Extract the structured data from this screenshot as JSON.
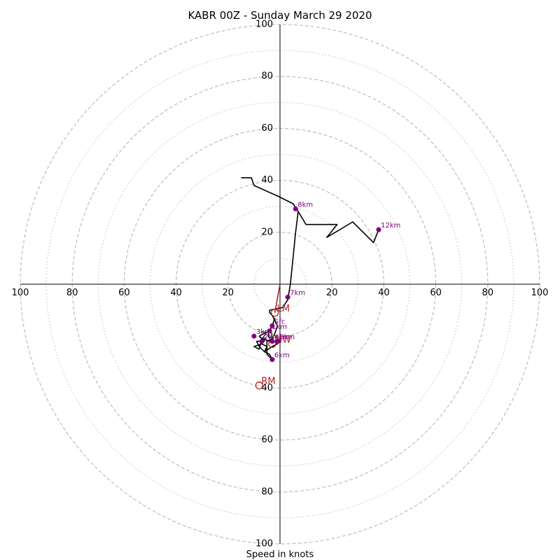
{
  "chart_data": {
    "type": "hodograph",
    "title": "KABR 00Z - Sunday March 29 2020",
    "xlabel": "Speed in knots",
    "range": 100,
    "ring_major": [
      20,
      40,
      60,
      80,
      100
    ],
    "ring_minor": [
      10,
      30,
      50,
      70,
      90
    ],
    "tick_labels": [
      "20",
      "40",
      "60",
      "80",
      "100"
    ],
    "colors": {
      "trace": "#000000",
      "heights": "#800080",
      "motion": "#b22222",
      "grid": "#bdbdbd"
    },
    "trace": [
      [
        -2,
        -13
      ],
      [
        -3,
        -16
      ],
      [
        -4,
        -18
      ],
      [
        -6,
        -19
      ],
      [
        -8,
        -20
      ],
      [
        -6,
        -22
      ],
      [
        -9,
        -22
      ],
      [
        -8,
        -24
      ],
      [
        -6,
        -26
      ],
      [
        -5,
        -24
      ],
      [
        -5,
        -27
      ],
      [
        -3,
        -29
      ],
      [
        -4,
        -27
      ],
      [
        -6,
        -26
      ],
      [
        -3,
        -24
      ],
      [
        -1,
        -23
      ],
      [
        0,
        -22
      ],
      [
        -4,
        -22
      ],
      [
        -7,
        -21
      ],
      [
        -8,
        -25
      ],
      [
        -10,
        -24
      ],
      [
        -7,
        -23
      ],
      [
        -5,
        -24
      ],
      [
        -5,
        -22
      ],
      [
        -3,
        -21
      ],
      [
        -2,
        -19
      ],
      [
        -1,
        -16
      ],
      [
        -2,
        -14
      ],
      [
        -3,
        -12
      ],
      [
        -4,
        -11
      ],
      [
        -4,
        -10
      ],
      [
        1,
        -9
      ],
      [
        3,
        -6
      ],
      [
        4,
        0
      ],
      [
        5,
        10
      ],
      [
        6,
        20
      ],
      [
        7,
        28
      ],
      [
        10,
        23
      ],
      [
        16,
        23
      ],
      [
        22,
        23
      ],
      [
        18,
        18
      ],
      [
        28,
        24
      ],
      [
        36,
        16
      ],
      [
        38,
        21
      ]
    ],
    "trace_upper": [
      [
        7,
        28
      ],
      [
        5,
        31
      ],
      [
        -1,
        34
      ],
      [
        -10,
        38
      ],
      [
        -11,
        41
      ],
      [
        -15,
        41
      ]
    ],
    "height_markers": [
      {
        "label": "Sfc",
        "u": -3,
        "v": -16
      },
      {
        "label": "1km",
        "u": -4,
        "v": -18
      },
      {
        "label": "2km",
        "u": -7,
        "v": -22
      },
      {
        "label": "3km",
        "u": -10,
        "v": -20
      },
      {
        "label": "4km",
        "u": -3,
        "v": -22
      },
      {
        "label": "5km",
        "u": -1,
        "v": -22
      },
      {
        "label": "6km",
        "u": -3,
        "v": -29
      },
      {
        "label": "7km",
        "u": 3,
        "v": -5
      },
      {
        "label": "8km",
        "u": 6,
        "v": 29
      },
      {
        "label": "12km",
        "u": 38,
        "v": 21
      }
    ],
    "storm_motion": [
      {
        "label": "LM",
        "u": -2,
        "v": -11
      },
      {
        "label": "MW",
        "u": -3,
        "v": -23
      },
      {
        "label": "RM",
        "u": -8,
        "v": -39
      }
    ],
    "shear_vector": [
      [
        0,
        0
      ],
      [
        -2,
        -11
      ]
    ]
  }
}
